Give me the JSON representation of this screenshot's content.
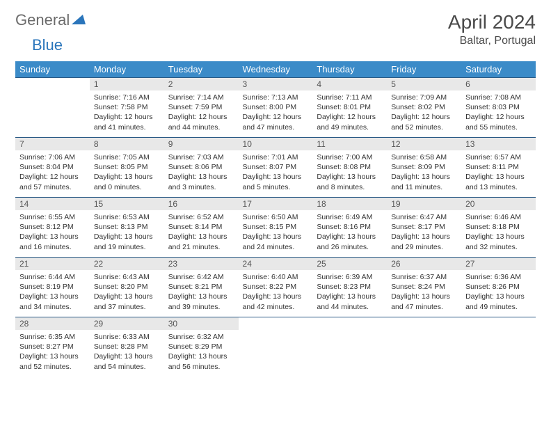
{
  "logo": {
    "part1": "General",
    "part2": "Blue"
  },
  "title": "April 2024",
  "location": "Baltar, Portugal",
  "colors": {
    "header_bg": "#3b8bc8",
    "header_text": "#ffffff",
    "border": "#2a5a85",
    "daynum_bg": "#e8e8e8",
    "logo_gray": "#6b6b6b",
    "logo_blue": "#2a75bb"
  },
  "weekdays": [
    "Sunday",
    "Monday",
    "Tuesday",
    "Wednesday",
    "Thursday",
    "Friday",
    "Saturday"
  ],
  "weeks": [
    [
      null,
      {
        "n": "1",
        "sr": "7:16 AM",
        "ss": "7:58 PM",
        "dl": "12 hours and 41 minutes."
      },
      {
        "n": "2",
        "sr": "7:14 AM",
        "ss": "7:59 PM",
        "dl": "12 hours and 44 minutes."
      },
      {
        "n": "3",
        "sr": "7:13 AM",
        "ss": "8:00 PM",
        "dl": "12 hours and 47 minutes."
      },
      {
        "n": "4",
        "sr": "7:11 AM",
        "ss": "8:01 PM",
        "dl": "12 hours and 49 minutes."
      },
      {
        "n": "5",
        "sr": "7:09 AM",
        "ss": "8:02 PM",
        "dl": "12 hours and 52 minutes."
      },
      {
        "n": "6",
        "sr": "7:08 AM",
        "ss": "8:03 PM",
        "dl": "12 hours and 55 minutes."
      }
    ],
    [
      {
        "n": "7",
        "sr": "7:06 AM",
        "ss": "8:04 PM",
        "dl": "12 hours and 57 minutes."
      },
      {
        "n": "8",
        "sr": "7:05 AM",
        "ss": "8:05 PM",
        "dl": "13 hours and 0 minutes."
      },
      {
        "n": "9",
        "sr": "7:03 AM",
        "ss": "8:06 PM",
        "dl": "13 hours and 3 minutes."
      },
      {
        "n": "10",
        "sr": "7:01 AM",
        "ss": "8:07 PM",
        "dl": "13 hours and 5 minutes."
      },
      {
        "n": "11",
        "sr": "7:00 AM",
        "ss": "8:08 PM",
        "dl": "13 hours and 8 minutes."
      },
      {
        "n": "12",
        "sr": "6:58 AM",
        "ss": "8:09 PM",
        "dl": "13 hours and 11 minutes."
      },
      {
        "n": "13",
        "sr": "6:57 AM",
        "ss": "8:11 PM",
        "dl": "13 hours and 13 minutes."
      }
    ],
    [
      {
        "n": "14",
        "sr": "6:55 AM",
        "ss": "8:12 PM",
        "dl": "13 hours and 16 minutes."
      },
      {
        "n": "15",
        "sr": "6:53 AM",
        "ss": "8:13 PM",
        "dl": "13 hours and 19 minutes."
      },
      {
        "n": "16",
        "sr": "6:52 AM",
        "ss": "8:14 PM",
        "dl": "13 hours and 21 minutes."
      },
      {
        "n": "17",
        "sr": "6:50 AM",
        "ss": "8:15 PM",
        "dl": "13 hours and 24 minutes."
      },
      {
        "n": "18",
        "sr": "6:49 AM",
        "ss": "8:16 PM",
        "dl": "13 hours and 26 minutes."
      },
      {
        "n": "19",
        "sr": "6:47 AM",
        "ss": "8:17 PM",
        "dl": "13 hours and 29 minutes."
      },
      {
        "n": "20",
        "sr": "6:46 AM",
        "ss": "8:18 PM",
        "dl": "13 hours and 32 minutes."
      }
    ],
    [
      {
        "n": "21",
        "sr": "6:44 AM",
        "ss": "8:19 PM",
        "dl": "13 hours and 34 minutes."
      },
      {
        "n": "22",
        "sr": "6:43 AM",
        "ss": "8:20 PM",
        "dl": "13 hours and 37 minutes."
      },
      {
        "n": "23",
        "sr": "6:42 AM",
        "ss": "8:21 PM",
        "dl": "13 hours and 39 minutes."
      },
      {
        "n": "24",
        "sr": "6:40 AM",
        "ss": "8:22 PM",
        "dl": "13 hours and 42 minutes."
      },
      {
        "n": "25",
        "sr": "6:39 AM",
        "ss": "8:23 PM",
        "dl": "13 hours and 44 minutes."
      },
      {
        "n": "26",
        "sr": "6:37 AM",
        "ss": "8:24 PM",
        "dl": "13 hours and 47 minutes."
      },
      {
        "n": "27",
        "sr": "6:36 AM",
        "ss": "8:26 PM",
        "dl": "13 hours and 49 minutes."
      }
    ],
    [
      {
        "n": "28",
        "sr": "6:35 AM",
        "ss": "8:27 PM",
        "dl": "13 hours and 52 minutes."
      },
      {
        "n": "29",
        "sr": "6:33 AM",
        "ss": "8:28 PM",
        "dl": "13 hours and 54 minutes."
      },
      {
        "n": "30",
        "sr": "6:32 AM",
        "ss": "8:29 PM",
        "dl": "13 hours and 56 minutes."
      },
      null,
      null,
      null,
      null
    ]
  ],
  "labels": {
    "sunrise": "Sunrise:",
    "sunset": "Sunset:",
    "daylight": "Daylight:"
  }
}
